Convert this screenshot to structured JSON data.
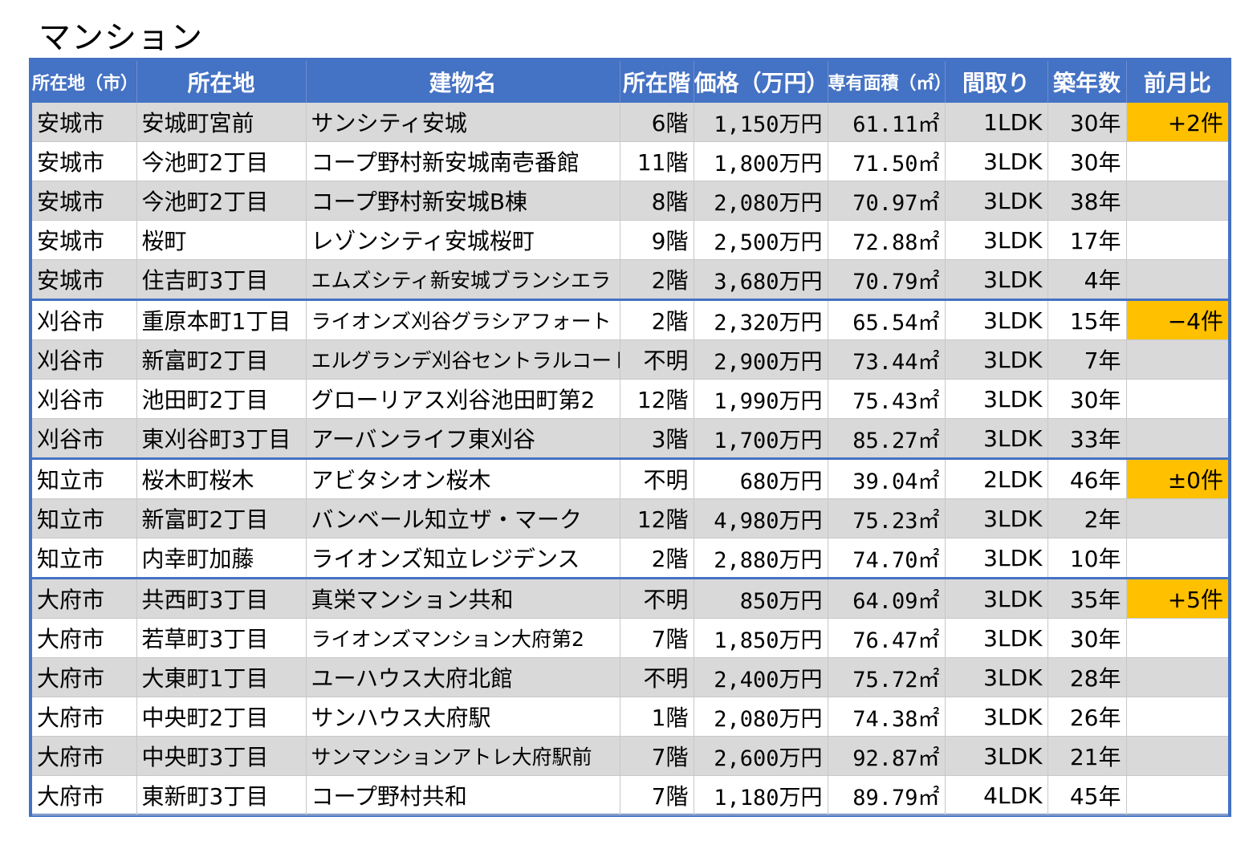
{
  "page": {
    "title": "マンション"
  },
  "table": {
    "headers": [
      {
        "label": "所在地（市）",
        "align": "center",
        "small": true
      },
      {
        "label": "所在地",
        "align": "center"
      },
      {
        "label": "建物名",
        "align": "center"
      },
      {
        "label": "所在階",
        "align": "center"
      },
      {
        "label": "価格（万円）",
        "align": "center"
      },
      {
        "label": "専有面積（㎡）",
        "align": "center",
        "small": true
      },
      {
        "label": "間取り",
        "align": "center"
      },
      {
        "label": "築年数",
        "align": "center"
      },
      {
        "label": "前月比",
        "align": "center"
      }
    ],
    "colors": {
      "header_bg": "#4472c4",
      "shaded_row": "#d9d9d9",
      "change_badge": "#ffc000",
      "group_separator": "#4472c4"
    },
    "rows": [
      {
        "city": "安城市",
        "address": "安城町宮前",
        "building": "サンシティ安城",
        "floor": "6階",
        "price": "1,150万円",
        "area": "61.11㎡",
        "layout": "1LDK",
        "age": "30年",
        "change": "+2件",
        "shaded": true,
        "group_start": false
      },
      {
        "city": "安城市",
        "address": "今池町2丁目",
        "building": "コープ野村新安城南壱番館",
        "floor": "11階",
        "price": "1,800万円",
        "area": "71.50㎡",
        "layout": "3LDK",
        "age": "30年",
        "change": "",
        "shaded": false,
        "group_start": false
      },
      {
        "city": "安城市",
        "address": "今池町2丁目",
        "building": "コープ野村新安城B棟",
        "floor": "8階",
        "price": "2,080万円",
        "area": "70.97㎡",
        "layout": "3LDK",
        "age": "38年",
        "change": "",
        "shaded": true,
        "group_start": false
      },
      {
        "city": "安城市",
        "address": "桜町",
        "building": "レゾンシティ安城桜町",
        "floor": "9階",
        "price": "2,500万円",
        "area": "72.88㎡",
        "layout": "3LDK",
        "age": "17年",
        "change": "",
        "shaded": false,
        "group_start": false
      },
      {
        "city": "安城市",
        "address": "住吉町3丁目",
        "building": "エムズシティ新安城ブランシエラ",
        "floor": "2階",
        "price": "3,680万円",
        "area": "70.79㎡",
        "layout": "3LDK",
        "age": "4年",
        "change": "",
        "shaded": true,
        "group_start": false,
        "small_building": true
      },
      {
        "city": "刈谷市",
        "address": "重原本町1丁目",
        "building": "ライオンズ刈谷グラシアフォート",
        "floor": "2階",
        "price": "2,320万円",
        "area": "65.54㎡",
        "layout": "3LDK",
        "age": "15年",
        "change": "−4件",
        "shaded": false,
        "group_start": true,
        "small_building": true
      },
      {
        "city": "刈谷市",
        "address": "新富町2丁目",
        "building": "エルグランデ刈谷セントラルコート",
        "floor": "不明",
        "price": "2,900万円",
        "area": "73.44㎡",
        "layout": "3LDK",
        "age": "7年",
        "change": "",
        "shaded": true,
        "group_start": false,
        "small_building": true
      },
      {
        "city": "刈谷市",
        "address": "池田町2丁目",
        "building": "グローリアス刈谷池田町第2",
        "floor": "12階",
        "price": "1,990万円",
        "area": "75.43㎡",
        "layout": "3LDK",
        "age": "30年",
        "change": "",
        "shaded": false,
        "group_start": false
      },
      {
        "city": "刈谷市",
        "address": "東刈谷町3丁目",
        "building": "アーバンライフ東刈谷",
        "floor": "3階",
        "price": "1,700万円",
        "area": "85.27㎡",
        "layout": "3LDK",
        "age": "33年",
        "change": "",
        "shaded": true,
        "group_start": false
      },
      {
        "city": "知立市",
        "address": "桜木町桜木",
        "building": "アビタシオン桜木",
        "floor": "不明",
        "price": "680万円",
        "area": "39.04㎡",
        "layout": "2LDK",
        "age": "46年",
        "change": "±0件",
        "shaded": false,
        "group_start": true
      },
      {
        "city": "知立市",
        "address": "新富町2丁目",
        "building": "バンベール知立ザ・マーク",
        "floor": "12階",
        "price": "4,980万円",
        "area": "75.23㎡",
        "layout": "3LDK",
        "age": "2年",
        "change": "",
        "shaded": true,
        "group_start": false
      },
      {
        "city": "知立市",
        "address": "内幸町加藤",
        "building": "ライオンズ知立レジデンス",
        "floor": "2階",
        "price": "2,880万円",
        "area": "74.70㎡",
        "layout": "3LDK",
        "age": "10年",
        "change": "",
        "shaded": false,
        "group_start": false
      },
      {
        "city": "大府市",
        "address": "共西町3丁目",
        "building": "真栄マンション共和",
        "floor": "不明",
        "price": "850万円",
        "area": "64.09㎡",
        "layout": "3LDK",
        "age": "35年",
        "change": "+5件",
        "shaded": true,
        "group_start": true
      },
      {
        "city": "大府市",
        "address": "若草町3丁目",
        "building": "ライオンズマンション大府第2",
        "floor": "7階",
        "price": "1,850万円",
        "area": "76.47㎡",
        "layout": "3LDK",
        "age": "30年",
        "change": "",
        "shaded": false,
        "group_start": false,
        "small_building": true
      },
      {
        "city": "大府市",
        "address": "大東町1丁目",
        "building": "ユーハウス大府北館",
        "floor": "不明",
        "price": "2,400万円",
        "area": "75.72㎡",
        "layout": "3LDK",
        "age": "28年",
        "change": "",
        "shaded": true,
        "group_start": false
      },
      {
        "city": "大府市",
        "address": "中央町2丁目",
        "building": "サンハウス大府駅",
        "floor": "1階",
        "price": "2,080万円",
        "area": "74.38㎡",
        "layout": "3LDK",
        "age": "26年",
        "change": "",
        "shaded": false,
        "group_start": false
      },
      {
        "city": "大府市",
        "address": "中央町3丁目",
        "building": "サンマンションアトレ大府駅前",
        "floor": "7階",
        "price": "2,600万円",
        "area": "92.87㎡",
        "layout": "3LDK",
        "age": "21年",
        "change": "",
        "shaded": true,
        "group_start": false,
        "small_building": true
      },
      {
        "city": "大府市",
        "address": "東新町3丁目",
        "building": "コープ野村共和",
        "floor": "7階",
        "price": "1,180万円",
        "area": "89.79㎡",
        "layout": "4LDK",
        "age": "45年",
        "change": "",
        "shaded": false,
        "group_start": false
      }
    ]
  }
}
